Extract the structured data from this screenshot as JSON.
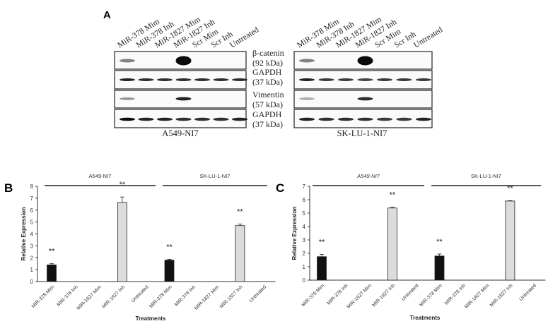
{
  "panel_a": {
    "letter": "A",
    "lanes": [
      "MiR-378 Mim",
      "MiR-378 Inh",
      "MiR-1827 Mim",
      "MiR-1827 Inh",
      "Scr Mim",
      "Scr Inh",
      "Untreated"
    ],
    "markers": [
      {
        "name": "β-catenin",
        "size": "(92 kDa)"
      },
      {
        "name": "GAPDH",
        "size": "(37 kDa)"
      },
      {
        "name": "Vimentin",
        "size": "(57 kDa)"
      },
      {
        "name": "GAPDH",
        "size": "(37 kDa)"
      }
    ],
    "blots": [
      {
        "cell_line": "A549-NI7",
        "band_intensity": [
          [
            0.5,
            0,
            0,
            1,
            0,
            0,
            0
          ],
          [
            0.9,
            0.85,
            0.85,
            0.85,
            0.85,
            0.85,
            0.85
          ],
          [
            0.4,
            0,
            0,
            0.9,
            0,
            0,
            0
          ],
          [
            1,
            0.9,
            0.9,
            0.85,
            0.85,
            0.85,
            0.9
          ]
        ]
      },
      {
        "cell_line": "SK-LU-1-NI7",
        "band_intensity": [
          [
            0.5,
            0,
            0,
            1,
            0,
            0,
            0
          ],
          [
            0.9,
            0.8,
            0.8,
            0.75,
            0.8,
            0.8,
            0.8
          ],
          [
            0.3,
            0,
            0,
            0.85,
            0,
            0,
            0
          ],
          [
            0.9,
            0.85,
            0.85,
            0.85,
            0.8,
            0.8,
            0.9
          ]
        ]
      }
    ]
  },
  "chart_data": [
    {
      "panel": "B",
      "type": "bar",
      "ylabel": "Relative Expression",
      "xlabel": "Treatments",
      "ylim": [
        0,
        8
      ],
      "yticks": [
        0,
        1,
        2,
        3,
        4,
        5,
        6,
        7,
        8
      ],
      "groups": [
        "A549-NI7",
        "SK-LU-1-NI7"
      ],
      "categories": [
        "MIR-378 Mim",
        "MIR-378 Inh",
        "MIR-1827 Mim",
        "MIR-1827 Inh",
        "Untreated",
        "MIR-378 Mim",
        "MIR-378 Inh",
        "MIR-1827 Mim",
        "MIR-1827 Inh",
        "Untreated"
      ],
      "values": [
        1.4,
        0,
        0,
        6.65,
        0,
        1.8,
        0,
        0,
        4.7,
        0
      ],
      "errors": [
        0.1,
        0,
        0,
        0.45,
        0,
        0.07,
        0,
        0,
        0.13,
        0
      ],
      "bar_colors": [
        "#111111",
        "#111111",
        "#111111",
        "#dcdcdc",
        "#dcdcdc",
        "#111111",
        "#111111",
        "#111111",
        "#dcdcdc",
        "#dcdcdc"
      ],
      "annotations": [
        "**",
        "",
        "",
        "**",
        "",
        "**",
        "",
        "",
        "**",
        ""
      ]
    },
    {
      "panel": "C",
      "type": "bar",
      "ylabel": "Relative Expression",
      "xlabel": "Treatments",
      "ylim": [
        0,
        7
      ],
      "yticks": [
        0,
        1,
        2,
        3,
        4,
        5,
        6,
        7
      ],
      "groups": [
        "A549-NI7",
        "SK-LU-1-NI7"
      ],
      "categories": [
        "MIR-378 Mim",
        "MIR-378 Inh",
        "MIR-1827 Mim",
        "MIR-1827 Inh",
        "Untreated",
        "MIR-378 Mim",
        "MIR-378 Inh",
        "MIR-1827 Mim",
        "MIR-1827 Inh",
        "Untreated"
      ],
      "values": [
        1.75,
        0,
        0,
        5.38,
        0,
        1.8,
        0,
        0,
        5.9,
        0
      ],
      "errors": [
        0.17,
        0,
        0,
        0.07,
        0,
        0.15,
        0,
        0,
        0.03,
        0
      ],
      "bar_colors": [
        "#111111",
        "#111111",
        "#111111",
        "#dcdcdc",
        "#dcdcdc",
        "#111111",
        "#111111",
        "#111111",
        "#dcdcdc",
        "#dcdcdc"
      ],
      "annotations": [
        "**",
        "",
        "",
        "**",
        "",
        "**",
        "",
        "",
        "**",
        ""
      ]
    }
  ]
}
